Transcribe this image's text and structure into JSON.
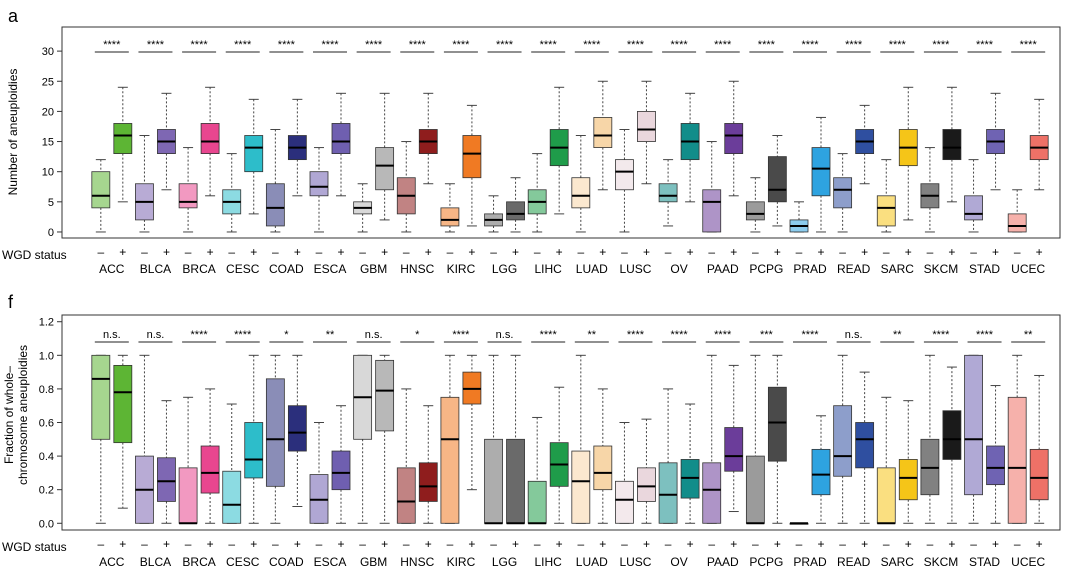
{
  "colors": {
    "ACC": "#5db534",
    "BLCA": "#7e67b3",
    "BRCA": "#e8468f",
    "CESC": "#2dbdca",
    "COAD": "#2b2f7c",
    "ESCA": "#6f5fb0",
    "GBM": "#b8b8b8",
    "HNSC": "#8f1d1d",
    "KIRC": "#f07a23",
    "LGG": "#6a6a6a",
    "LIHC": "#1f9c4a",
    "LUAD": "#f7d6a8",
    "LUSC": "#ead7dd",
    "OV": "#128d8a",
    "PAAD": "#6b3d9a",
    "PCPG": "#4a4a4a",
    "PRAD": "#2ea3e0",
    "READ": "#2f4fa0",
    "SARC": "#f5c518",
    "SKCM": "#1a1a1a",
    "STAD": "#6f63b3",
    "UCEC": "#ee7167"
  },
  "chart_data": [
    {
      "panel_label": "a",
      "type": "box",
      "ylabel": "Number of aneuploidies",
      "ylim": [
        -1,
        34
      ],
      "yticks": [
        0,
        5,
        10,
        15,
        20,
        25,
        30
      ],
      "grid": false,
      "group_axis_label": "WGD status",
      "sublevel_labels": [
        "–",
        "+"
      ],
      "categories": [
        "ACC",
        "BLCA",
        "BRCA",
        "CESC",
        "COAD",
        "ESCA",
        "GBM",
        "HNSC",
        "KIRC",
        "LGG",
        "LIHC",
        "LUAD",
        "LUSC",
        "OV",
        "PAAD",
        "PCPG",
        "PRAD",
        "READ",
        "SARC",
        "SKCM",
        "STAD",
        "UCEC"
      ],
      "significance": [
        "****",
        "****",
        "****",
        "****",
        "****",
        "****",
        "****",
        "****",
        "****",
        "****",
        "****",
        "****",
        "****",
        "****",
        "****",
        "****",
        "****",
        "****",
        "****",
        "****",
        "****",
        "****"
      ],
      "series": [
        {
          "name": "–",
          "boxes": [
            {
              "min": 0,
              "q1": 4,
              "median": 6,
              "q3": 10,
              "max": 12
            },
            {
              "min": 0,
              "q1": 2,
              "median": 5,
              "q3": 8,
              "max": 16
            },
            {
              "min": 0,
              "q1": 4,
              "median": 5,
              "q3": 8,
              "max": 14
            },
            {
              "min": 0,
              "q1": 3,
              "median": 5,
              "q3": 7,
              "max": 13
            },
            {
              "min": 0,
              "q1": 1,
              "median": 4,
              "q3": 8,
              "max": 17
            },
            {
              "min": 0,
              "q1": 6,
              "median": 7.5,
              "q3": 10,
              "max": 14
            },
            {
              "min": 0,
              "q1": 3,
              "median": 4,
              "q3": 5,
              "max": 8
            },
            {
              "min": 0,
              "q1": 3,
              "median": 6,
              "q3": 9,
              "max": 15
            },
            {
              "min": 0,
              "q1": 1,
              "median": 2,
              "q3": 4,
              "max": 8
            },
            {
              "min": 0,
              "q1": 1,
              "median": 2,
              "q3": 3,
              "max": 6
            },
            {
              "min": 0,
              "q1": 3,
              "median": 5,
              "q3": 7,
              "max": 13
            },
            {
              "min": 0,
              "q1": 4,
              "median": 6,
              "q3": 9,
              "max": 16
            },
            {
              "min": 0,
              "q1": 7,
              "median": 10,
              "q3": 12,
              "max": 17
            },
            {
              "min": 1,
              "q1": 5,
              "median": 6,
              "q3": 8,
              "max": 12
            },
            {
              "min": 0,
              "q1": 0,
              "median": 5,
              "q3": 7,
              "max": 15
            },
            {
              "min": 0,
              "q1": 2,
              "median": 3,
              "q3": 5,
              "max": 9
            },
            {
              "min": 0,
              "q1": 0,
              "median": 1,
              "q3": 2,
              "max": 5
            },
            {
              "min": 0,
              "q1": 4,
              "median": 7,
              "q3": 9,
              "max": 13
            },
            {
              "min": 0,
              "q1": 1,
              "median": 4,
              "q3": 6,
              "max": 12
            },
            {
              "min": 0,
              "q1": 4,
              "median": 6,
              "q3": 8,
              "max": 14
            },
            {
              "min": 0,
              "q1": 2,
              "median": 3,
              "q3": 6,
              "max": 12
            },
            {
              "min": 0,
              "q1": 0,
              "median": 1,
              "q3": 3,
              "max": 7
            }
          ]
        },
        {
          "name": "+",
          "boxes": [
            {
              "min": 5,
              "q1": 13,
              "median": 16,
              "q3": 18,
              "max": 24
            },
            {
              "min": 7,
              "q1": 13,
              "median": 15,
              "q3": 17,
              "max": 23
            },
            {
              "min": 6,
              "q1": 13,
              "median": 15,
              "q3": 18,
              "max": 24
            },
            {
              "min": 3,
              "q1": 10,
              "median": 14,
              "q3": 16,
              "max": 22
            },
            {
              "min": 6,
              "q1": 12,
              "median": 14,
              "q3": 16,
              "max": 22
            },
            {
              "min": 6,
              "q1": 13,
              "median": 15,
              "q3": 18,
              "max": 23
            },
            {
              "min": 2,
              "q1": 7,
              "median": 11,
              "q3": 14,
              "max": 23
            },
            {
              "min": 8,
              "q1": 13,
              "median": 15,
              "q3": 17,
              "max": 23
            },
            {
              "min": 1,
              "q1": 9,
              "median": 13,
              "q3": 16,
              "max": 21
            },
            {
              "min": 0,
              "q1": 2,
              "median": 3,
              "q3": 5,
              "max": 9
            },
            {
              "min": 3,
              "q1": 11,
              "median": 14,
              "q3": 17,
              "max": 24
            },
            {
              "min": 7,
              "q1": 14,
              "median": 16,
              "q3": 19,
              "max": 25
            },
            {
              "min": 8,
              "q1": 15,
              "median": 17,
              "q3": 20,
              "max": 25
            },
            {
              "min": 5,
              "q1": 12,
              "median": 15,
              "q3": 18,
              "max": 23
            },
            {
              "min": 6,
              "q1": 13,
              "median": 16,
              "q3": 18,
              "max": 25
            },
            {
              "min": 1,
              "q1": 5,
              "median": 7,
              "q3": 12.5,
              "max": 16
            },
            {
              "min": 0,
              "q1": 6,
              "median": 10.5,
              "q3": 14,
              "max": 19
            },
            {
              "min": 8,
              "q1": 13,
              "median": 15,
              "q3": 17,
              "max": 21
            },
            {
              "min": 2,
              "q1": 11,
              "median": 14,
              "q3": 17,
              "max": 24
            },
            {
              "min": 5,
              "q1": 12,
              "median": 14,
              "q3": 17,
              "max": 24
            },
            {
              "min": 7,
              "q1": 13,
              "median": 15,
              "q3": 17,
              "max": 23
            },
            {
              "min": 7,
              "q1": 12,
              "median": 14,
              "q3": 16,
              "max": 22
            }
          ]
        }
      ]
    },
    {
      "panel_label": "f",
      "type": "box",
      "ylabel": "Fraction of whole–\nchromosome aneuploidies",
      "ylim": [
        -0.04,
        1.24
      ],
      "yticks": [
        0.0,
        0.2,
        0.4,
        0.6,
        0.8,
        1.0,
        1.2
      ],
      "grid": false,
      "group_axis_label": "WGD status",
      "sublevel_labels": [
        "–",
        "+"
      ],
      "categories": [
        "ACC",
        "BLCA",
        "BRCA",
        "CESC",
        "COAD",
        "ESCA",
        "GBM",
        "HNSC",
        "KIRC",
        "LGG",
        "LIHC",
        "LUAD",
        "LUSC",
        "OV",
        "PAAD",
        "PCPG",
        "PRAD",
        "READ",
        "SARC",
        "SKCM",
        "STAD",
        "UCEC"
      ],
      "significance": [
        "n.s.",
        "n.s.",
        "****",
        "****",
        "*",
        "**",
        "n.s.",
        "*",
        "****",
        "n.s.",
        "****",
        "**",
        "****",
        "****",
        "****",
        "***",
        "****",
        "n.s.",
        "**",
        "****",
        "****",
        "**"
      ],
      "series": [
        {
          "name": "–",
          "boxes": [
            {
              "min": 0,
              "q1": 0.5,
              "median": 0.86,
              "q3": 1.0,
              "max": 1.0
            },
            {
              "min": 0,
              "q1": 0.0,
              "median": 0.2,
              "q3": 0.4,
              "max": 1.0
            },
            {
              "min": 0,
              "q1": 0.0,
              "median": 0.0,
              "q3": 0.33,
              "max": 0.75
            },
            {
              "min": 0,
              "q1": 0.0,
              "median": 0.11,
              "q3": 0.31,
              "max": 0.71
            },
            {
              "min": 0,
              "q1": 0.22,
              "median": 0.5,
              "q3": 0.86,
              "max": 1.0
            },
            {
              "min": 0,
              "q1": 0.0,
              "median": 0.14,
              "q3": 0.29,
              "max": 0.6
            },
            {
              "min": 0,
              "q1": 0.5,
              "median": 0.75,
              "q3": 1.0,
              "max": 1.0
            },
            {
              "min": 0,
              "q1": 0.0,
              "median": 0.13,
              "q3": 0.33,
              "max": 0.8
            },
            {
              "min": 0,
              "q1": 0.0,
              "median": 0.5,
              "q3": 0.75,
              "max": 1.0
            },
            {
              "min": 0,
              "q1": 0.0,
              "median": 0.0,
              "q3": 0.5,
              "max": 1.0
            },
            {
              "min": 0,
              "q1": 0.0,
              "median": 0.0,
              "q3": 0.25,
              "max": 0.63
            },
            {
              "min": 0,
              "q1": 0.0,
              "median": 0.25,
              "q3": 0.43,
              "max": 1.0
            },
            {
              "min": 0,
              "q1": 0.0,
              "median": 0.14,
              "q3": 0.25,
              "max": 0.6
            },
            {
              "min": 0,
              "q1": 0.0,
              "median": 0.17,
              "q3": 0.36,
              "max": 0.8
            },
            {
              "min": 0,
              "q1": 0.0,
              "median": 0.2,
              "q3": 0.36,
              "max": 1.0
            },
            {
              "min": 0,
              "q1": 0.0,
              "median": 0.0,
              "q3": 0.4,
              "max": 1.0
            },
            {
              "min": 0,
              "q1": 0.0,
              "median": 0.0,
              "q3": 0.0,
              "max": 0.0
            },
            {
              "min": 0,
              "q1": 0.28,
              "median": 0.4,
              "q3": 0.7,
              "max": 1.0
            },
            {
              "min": 0,
              "q1": 0.0,
              "median": 0.0,
              "q3": 0.33,
              "max": 0.75
            },
            {
              "min": 0,
              "q1": 0.17,
              "median": 0.33,
              "q3": 0.5,
              "max": 1.0
            },
            {
              "min": 0,
              "q1": 0.17,
              "median": 0.5,
              "q3": 1.0,
              "max": 1.0
            },
            {
              "min": 0,
              "q1": 0.0,
              "median": 0.33,
              "q3": 0.75,
              "max": 1.0
            }
          ]
        },
        {
          "name": "+",
          "boxes": [
            {
              "min": 0.09,
              "q1": 0.48,
              "median": 0.78,
              "q3": 0.94,
              "max": 1.0
            },
            {
              "min": 0,
              "q1": 0.13,
              "median": 0.25,
              "q3": 0.39,
              "max": 0.73
            },
            {
              "min": 0,
              "q1": 0.18,
              "median": 0.3,
              "q3": 0.46,
              "max": 0.8
            },
            {
              "min": 0,
              "q1": 0.27,
              "median": 0.38,
              "q3": 0.6,
              "max": 1.0
            },
            {
              "min": 0.1,
              "q1": 0.43,
              "median": 0.54,
              "q3": 0.7,
              "max": 1.0
            },
            {
              "min": 0,
              "q1": 0.2,
              "median": 0.3,
              "q3": 0.43,
              "max": 0.7
            },
            {
              "min": 0,
              "q1": 0.55,
              "median": 0.79,
              "q3": 0.97,
              "max": 1.0
            },
            {
              "min": 0,
              "q1": 0.13,
              "median": 0.22,
              "q3": 0.36,
              "max": 0.7
            },
            {
              "min": 0.2,
              "q1": 0.71,
              "median": 0.8,
              "q3": 0.9,
              "max": 1.0
            },
            {
              "min": 0,
              "q1": 0.0,
              "median": 0.0,
              "q3": 0.5,
              "max": 1.0
            },
            {
              "min": 0,
              "q1": 0.22,
              "median": 0.35,
              "q3": 0.48,
              "max": 0.81
            },
            {
              "min": 0,
              "q1": 0.2,
              "median": 0.3,
              "q3": 0.46,
              "max": 0.8
            },
            {
              "min": 0,
              "q1": 0.13,
              "median": 0.22,
              "q3": 0.33,
              "max": 0.62
            },
            {
              "min": 0,
              "q1": 0.15,
              "median": 0.27,
              "q3": 0.38,
              "max": 0.71
            },
            {
              "min": 0.07,
              "q1": 0.31,
              "median": 0.4,
              "q3": 0.57,
              "max": 0.94
            },
            {
              "min": 0,
              "q1": 0.37,
              "median": 0.6,
              "q3": 0.81,
              "max": 1.0
            },
            {
              "min": 0,
              "q1": 0.17,
              "median": 0.29,
              "q3": 0.44,
              "max": 0.64
            },
            {
              "min": 0,
              "q1": 0.33,
              "median": 0.5,
              "q3": 0.6,
              "max": 0.9
            },
            {
              "min": 0,
              "q1": 0.14,
              "median": 0.27,
              "q3": 0.38,
              "max": 0.73
            },
            {
              "min": 0,
              "q1": 0.38,
              "median": 0.5,
              "q3": 0.67,
              "max": 0.93
            },
            {
              "min": 0,
              "q1": 0.23,
              "median": 0.33,
              "q3": 0.46,
              "max": 0.82
            },
            {
              "min": 0,
              "q1": 0.14,
              "median": 0.27,
              "q3": 0.44,
              "max": 0.88
            }
          ]
        }
      ]
    }
  ]
}
